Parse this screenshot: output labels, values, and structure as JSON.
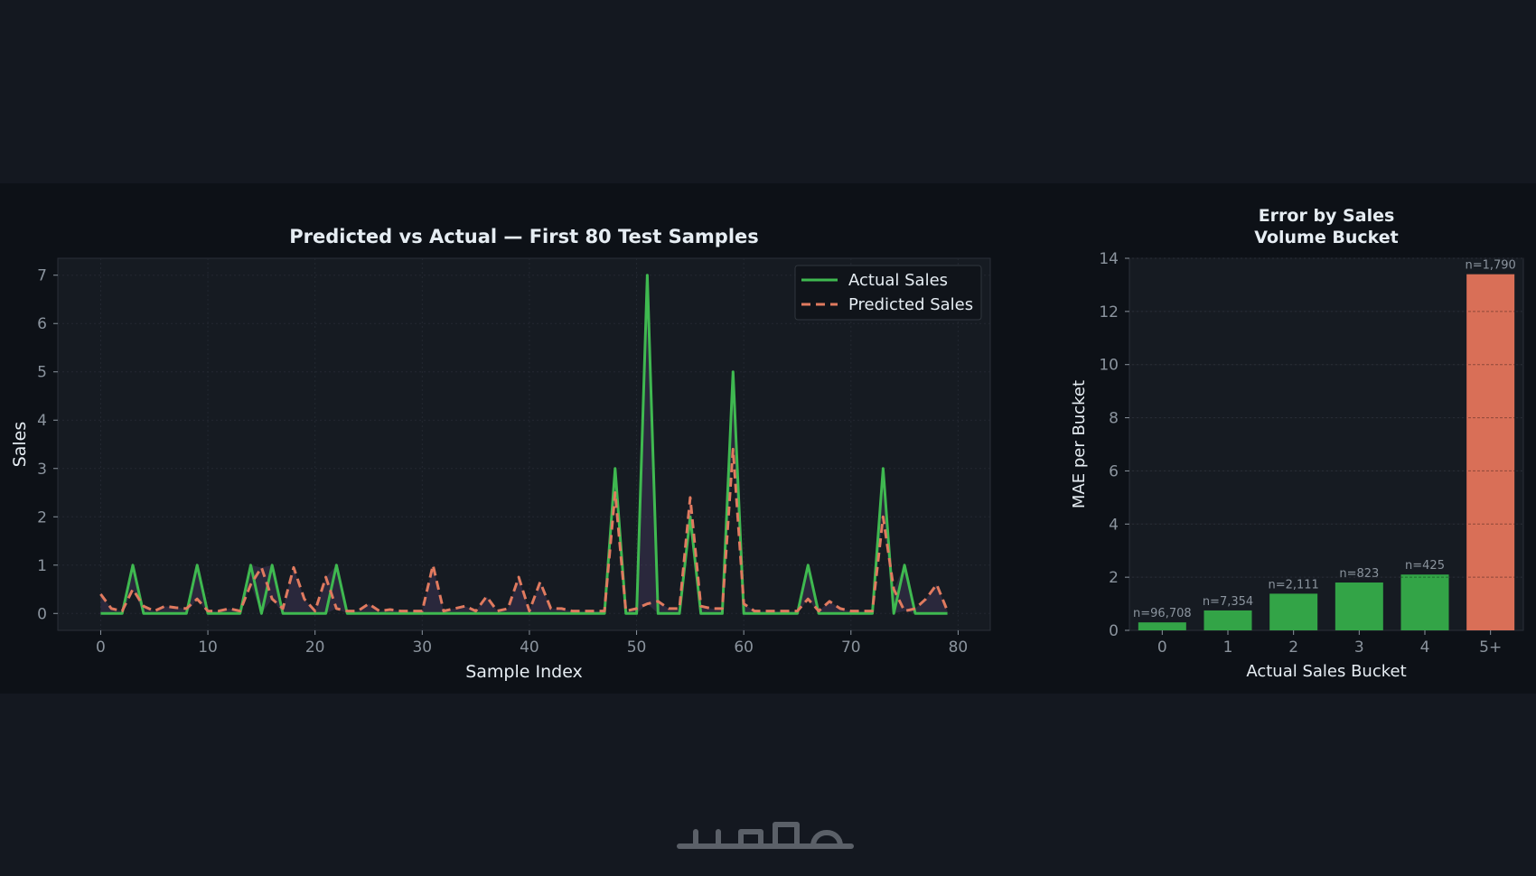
{
  "colors": {
    "page_bg": "#141820",
    "figure_bg": "#0d1117",
    "axes_bg": "#161b22",
    "actual": "#3fb950",
    "predicted": "#e07a5f",
    "bar_green": "#33a447",
    "bar_orange": "#d96f57",
    "text": "#e6edf3",
    "tick": "#8b949e"
  },
  "brand": {
    "logo_text": "خمسات",
    "logo_icon": "khamsat-logo"
  },
  "chart_data": [
    {
      "type": "line",
      "title": "Predicted vs Actual — First 80 Test Samples",
      "xlabel": "Sample Index",
      "ylabel": "Sales",
      "xlim": [
        -4,
        83
      ],
      "ylim": [
        -0.35,
        7.35
      ],
      "xticks": [
        0,
        10,
        20,
        30,
        40,
        50,
        60,
        70,
        80
      ],
      "yticks": [
        0,
        1,
        2,
        3,
        4,
        5,
        6,
        7
      ],
      "legend_position": "top-right",
      "grid": true,
      "series": [
        {
          "name": "Actual Sales",
          "style": "solid",
          "color": "#3fb950",
          "values": [
            0,
            0,
            0,
            1,
            0,
            0,
            0,
            0,
            0,
            1,
            0,
            0,
            0,
            0,
            1,
            0,
            1,
            0,
            0,
            0,
            0,
            0,
            1,
            0,
            0,
            0,
            0,
            0,
            0,
            0,
            0,
            0,
            0,
            0,
            0,
            0,
            0,
            0,
            0,
            0,
            0,
            0,
            0,
            0,
            0,
            0,
            0,
            0,
            3,
            0,
            0,
            7,
            0,
            0,
            0,
            2,
            0,
            0,
            0,
            5,
            0,
            0,
            0,
            0,
            0,
            0,
            1,
            0,
            0,
            0,
            0,
            0,
            0,
            3,
            0,
            1,
            0,
            0,
            0,
            0
          ]
        },
        {
          "name": "Predicted Sales",
          "style": "dashed",
          "color": "#e07a5f",
          "values": [
            0.4,
            0.1,
            0.05,
            0.5,
            0.15,
            0.05,
            0.15,
            0.12,
            0.1,
            0.3,
            0.05,
            0.05,
            0.1,
            0.05,
            0.6,
            0.95,
            0.3,
            0.1,
            0.95,
            0.3,
            0.05,
            0.75,
            0.1,
            0.05,
            0.05,
            0.2,
            0.05,
            0.08,
            0.05,
            0.05,
            0.05,
            1.0,
            0.05,
            0.1,
            0.15,
            0.05,
            0.35,
            0.05,
            0.1,
            0.75,
            0.05,
            0.65,
            0.1,
            0.1,
            0.05,
            0.05,
            0.05,
            0.05,
            2.5,
            0.05,
            0.1,
            0.2,
            0.25,
            0.1,
            0.1,
            2.4,
            0.15,
            0.1,
            0.1,
            3.4,
            0.2,
            0.05,
            0.05,
            0.05,
            0.05,
            0.05,
            0.3,
            0.05,
            0.25,
            0.1,
            0.05,
            0.05,
            0.05,
            2.0,
            0.5,
            0.05,
            0.1,
            0.3,
            0.6,
            0.05
          ]
        }
      ]
    },
    {
      "type": "bar",
      "title": "Error by Sales\nVolume Bucket",
      "xlabel": "Actual Sales Bucket",
      "ylabel": "MAE per Bucket",
      "ylim": [
        0,
        14
      ],
      "yticks": [
        0,
        2,
        4,
        6,
        8,
        10,
        12,
        14
      ],
      "categories": [
        "0",
        "1",
        "2",
        "3",
        "4",
        "5+"
      ],
      "values": [
        0.3,
        0.75,
        1.38,
        1.8,
        2.1,
        13.4
      ],
      "bar_labels": [
        "n=96,708",
        "n=7,354",
        "n=2,111",
        "n=823",
        "n=425",
        "n=1,790"
      ],
      "bar_colors": [
        "#33a447",
        "#33a447",
        "#33a447",
        "#33a447",
        "#33a447",
        "#d96f57"
      ],
      "grid": true
    }
  ]
}
